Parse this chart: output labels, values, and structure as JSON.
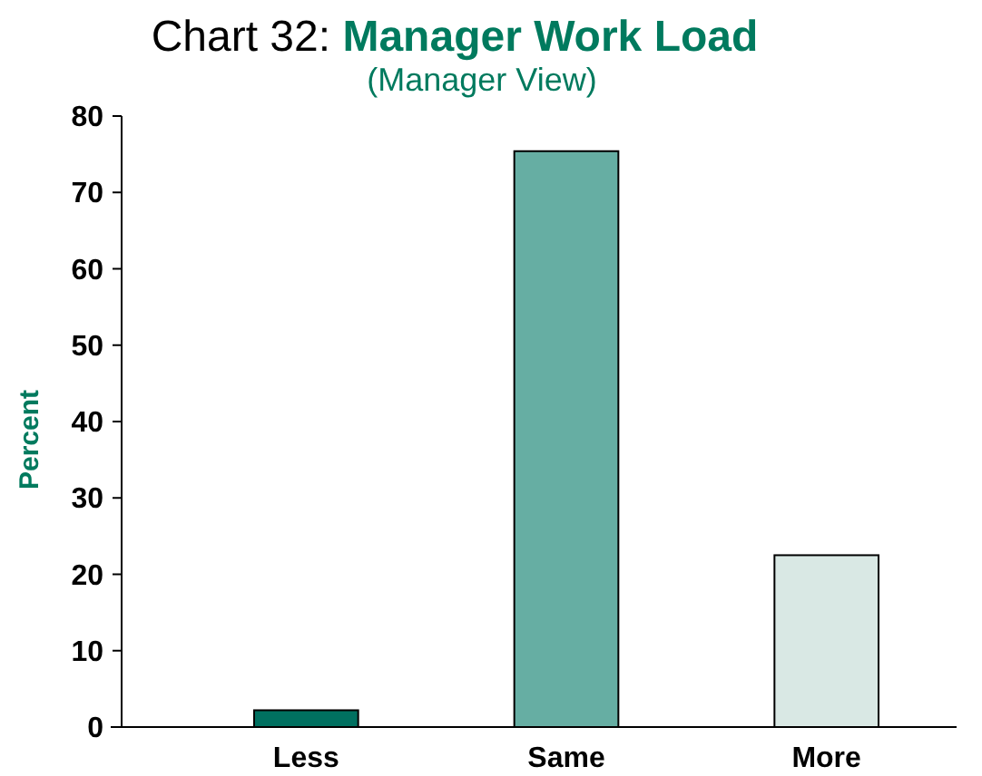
{
  "chart_data": {
    "type": "bar",
    "title": "Chart 32: Manager Work Load",
    "subtitle": "(Manager View)",
    "ylabel": "Percent",
    "categories": [
      "Less",
      "Same",
      "More"
    ],
    "values": [
      2.2,
      75.4,
      22.5
    ],
    "colors": [
      "#007060",
      "#66aea3",
      "#d9e8e4"
    ],
    "ylim": [
      0,
      80
    ],
    "yticks": [
      0,
      10,
      20,
      30,
      40,
      50,
      60,
      70,
      80
    ],
    "grid": false
  }
}
